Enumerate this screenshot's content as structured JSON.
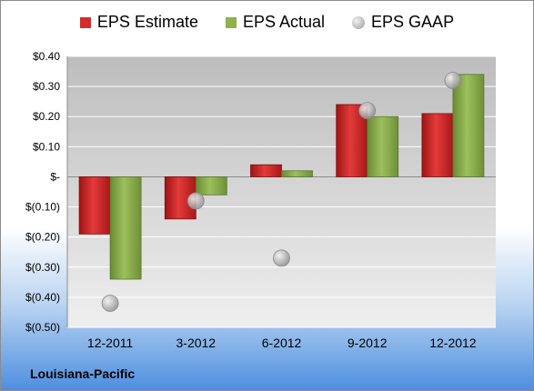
{
  "chart_data": {
    "type": "bar",
    "categories": [
      "12-2011",
      "3-2012",
      "6-2012",
      "9-2012",
      "12-2012"
    ],
    "series": [
      {
        "name": "EPS Estimate",
        "type": "bar",
        "color": "#d42c2c",
        "values": [
          -0.19,
          -0.14,
          0.04,
          0.24,
          0.21
        ]
      },
      {
        "name": "EPS Actual",
        "type": "bar",
        "color": "#8fb04f",
        "values": [
          -0.34,
          -0.06,
          0.02,
          0.2,
          0.34
        ]
      },
      {
        "name": "EPS GAAP",
        "type": "scatter",
        "color": "#b8b8b8",
        "values": [
          -0.42,
          -0.08,
          -0.27,
          0.22,
          0.32
        ]
      }
    ],
    "ylim": [
      -0.5,
      0.4
    ],
    "yticks": [
      0.4,
      0.3,
      0.2,
      0.1,
      0.0,
      -0.1,
      -0.2,
      -0.3,
      -0.4,
      -0.5
    ],
    "ytick_labels": [
      "$0.40",
      "$0.30",
      "$0.20",
      "$0.10",
      "$-",
      "$(0.10)",
      "$(0.20)",
      "$(0.30)",
      "$(0.40)",
      "$(0.50)"
    ],
    "grid": true,
    "legend_position": "top"
  },
  "footer": {
    "company": "Louisiana-Pacific"
  }
}
